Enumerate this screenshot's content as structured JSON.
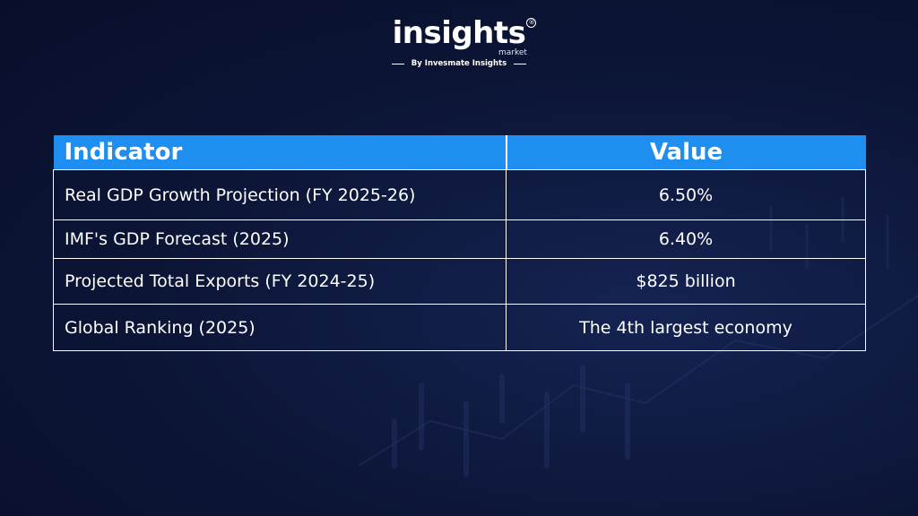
{
  "logo": {
    "main": "insights",
    "registered": "®",
    "sub": "market",
    "byline": "By Invesmate Insights"
  },
  "table": {
    "headers": {
      "indicator": "Indicator",
      "value": "Value"
    },
    "rows": [
      {
        "indicator": "Real GDP Growth Projection (FY 2025-26)",
        "value": "6.50%"
      },
      {
        "indicator": "IMF's GDP Forecast (2025)",
        "value": "6.40%"
      },
      {
        "indicator": "Projected Total Exports (FY 2024-25)",
        "value": "$825 billion"
      },
      {
        "indicator": "Global Ranking (2025)",
        "value": "The 4th largest economy"
      }
    ]
  },
  "colors": {
    "background": "#0c1536",
    "header_fill": "#1e8ef0",
    "text": "#ffffff"
  }
}
